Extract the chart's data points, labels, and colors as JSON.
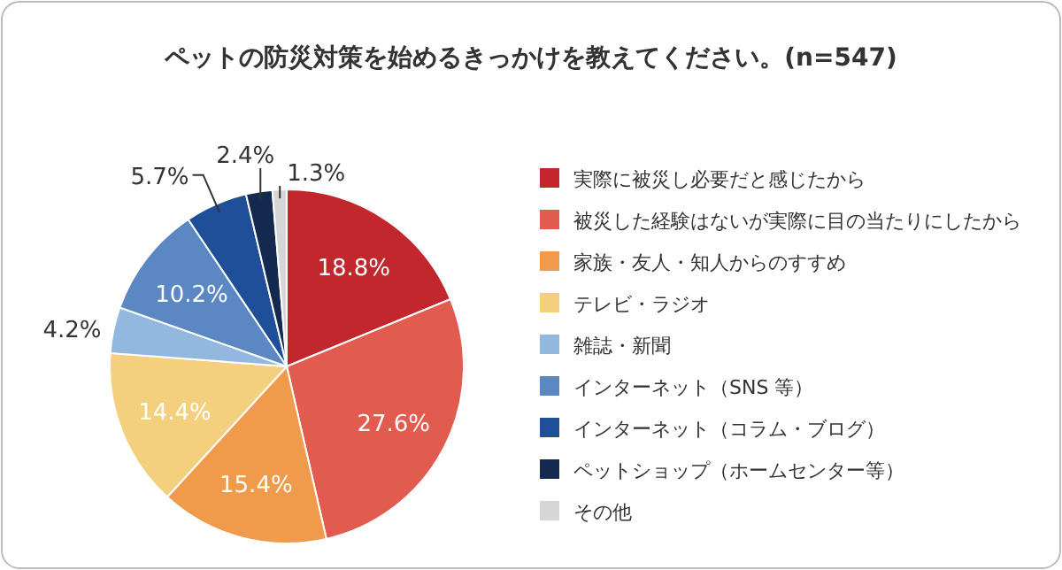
{
  "chart_data": {
    "type": "pie",
    "title": "ペットの防災対策を始めるきっかけを教えてください。(n=547)",
    "categories": [
      "実際に被災し必要だと感じたから",
      "被災した経験はないが実際に目の当たりにしたから",
      "家族・友人・知人からのすすめ",
      "テレビ・ラジオ",
      "雑誌・新聞",
      "インターネット（SNS 等）",
      "インターネット（コラム・ブログ）",
      "ペットショップ（ホームセンター等）",
      "その他"
    ],
    "values": [
      18.8,
      27.6,
      15.4,
      14.4,
      4.2,
      10.2,
      5.7,
      2.4,
      1.3
    ],
    "colors": [
      "#c1272d",
      "#e25b4f",
      "#ef9b4b",
      "#f4cf7d",
      "#93b8df",
      "#5b87c2",
      "#1f4f98",
      "#13294f",
      "#d6d6d6"
    ],
    "value_labels": [
      "18.8%",
      "27.6%",
      "15.4%",
      "14.4%",
      "4.2%",
      "10.2%",
      "5.7%",
      "2.4%",
      "1.3%"
    ],
    "legend": "right"
  }
}
